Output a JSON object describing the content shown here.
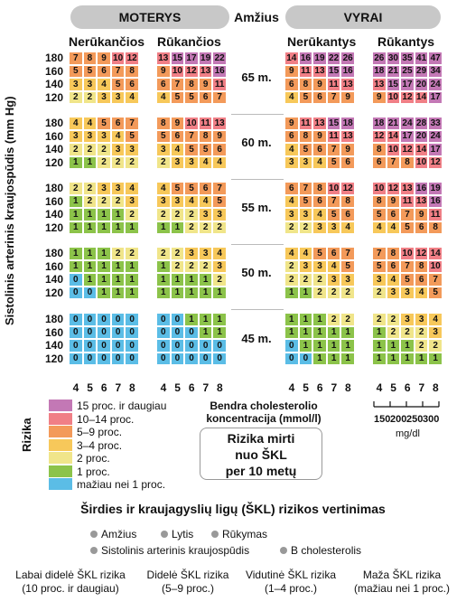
{
  "header": {
    "women": "MOTERYS",
    "age": "Amžius",
    "men": "VYRAI"
  },
  "subheaders": {
    "w_nonsmoke": "Nerūkančios",
    "w_smoke": "Rūkančios",
    "m_nonsmoke": "Nerūkantys",
    "m_smoke": "Rūkantys"
  },
  "y_axis_label": "Sistolinis arterinis kraujospūdis (mm Hg)",
  "colors": {
    "c1": "#5bbde6",
    "c2": "#8cc34a",
    "c3": "#f0e58a",
    "c4": "#f7c85a",
    "c5": "#f39a5a",
    "c6": "#f07f86",
    "c7": "#c378b5"
  },
  "chart_data": {
    "type": "heatmap",
    "title": "Širdies ir kraujagyslių ligų (ŠKL) rizikos vertinimas",
    "x_label": "Bendra cholesterolio koncentracija (mmol/l)",
    "x_ticks": [
      "4",
      "5",
      "6",
      "7",
      "8"
    ],
    "x_ticks_mgdl": [
      "150",
      "200",
      "250",
      "300"
    ],
    "x_unit_mgdl": "mg/dl",
    "y_label": "Sistolinis arterinis kraujospūdis (mm Hg)",
    "y_ticks": [
      "180",
      "160",
      "140",
      "120"
    ],
    "value_label": "Rizika mirti nuo ŠKL per 10 metų",
    "groups": [
      "MOTERYS Nerūkančios",
      "MOTERYS Rūkančios",
      "VYRAI Nerūkantys",
      "VYRAI Rūkantys"
    ],
    "age_bands": [
      {
        "age": "65 m.",
        "grids": [
          [
            [
              7,
              8,
              9,
              10,
              12
            ],
            [
              5,
              5,
              6,
              7,
              8
            ],
            [
              3,
              3,
              4,
              5,
              6
            ],
            [
              2,
              2,
              3,
              3,
              4
            ]
          ],
          [
            [
              13,
              15,
              17,
              19,
              22
            ],
            [
              9,
              10,
              12,
              13,
              16
            ],
            [
              6,
              7,
              8,
              9,
              11
            ],
            [
              4,
              5,
              5,
              6,
              7
            ]
          ],
          [
            [
              14,
              16,
              19,
              22,
              26
            ],
            [
              9,
              11,
              13,
              15,
              16
            ],
            [
              6,
              8,
              9,
              11,
              13
            ],
            [
              4,
              5,
              6,
              7,
              9
            ]
          ],
          [
            [
              26,
              30,
              35,
              41,
              47
            ],
            [
              18,
              21,
              25,
              29,
              34
            ],
            [
              13,
              15,
              17,
              20,
              24
            ],
            [
              9,
              10,
              12,
              14,
              17
            ]
          ]
        ]
      },
      {
        "age": "60 m.",
        "grids": [
          [
            [
              4,
              4,
              5,
              6,
              7
            ],
            [
              3,
              3,
              3,
              4,
              5
            ],
            [
              2,
              2,
              2,
              3,
              3
            ],
            [
              1,
              1,
              2,
              2,
              2
            ]
          ],
          [
            [
              8,
              9,
              10,
              11,
              13
            ],
            [
              5,
              6,
              7,
              8,
              9
            ],
            [
              3,
              4,
              5,
              5,
              6
            ],
            [
              2,
              3,
              3,
              4,
              4
            ]
          ],
          [
            [
              9,
              11,
              13,
              15,
              18
            ],
            [
              6,
              8,
              9,
              11,
              13
            ],
            [
              4,
              5,
              6,
              7,
              9
            ],
            [
              3,
              3,
              4,
              5,
              6
            ]
          ],
          [
            [
              18,
              21,
              24,
              28,
              33
            ],
            [
              12,
              14,
              17,
              20,
              24
            ],
            [
              8,
              10,
              12,
              14,
              17
            ],
            [
              6,
              7,
              8,
              10,
              12
            ]
          ]
        ]
      },
      {
        "age": "55 m.",
        "grids": [
          [
            [
              2,
              2,
              3,
              3,
              4
            ],
            [
              1,
              2,
              2,
              2,
              3
            ],
            [
              1,
              1,
              1,
              1,
              2
            ],
            [
              1,
              1,
              1,
              1,
              1
            ]
          ],
          [
            [
              4,
              5,
              5,
              6,
              7
            ],
            [
              3,
              3,
              4,
              4,
              5
            ],
            [
              2,
              2,
              2,
              3,
              3
            ],
            [
              1,
              1,
              2,
              2,
              2
            ]
          ],
          [
            [
              6,
              7,
              8,
              10,
              12
            ],
            [
              4,
              5,
              6,
              7,
              8
            ],
            [
              3,
              3,
              4,
              5,
              6
            ],
            [
              2,
              2,
              3,
              3,
              4
            ]
          ],
          [
            [
              10,
              12,
              13,
              16,
              19
            ],
            [
              8,
              9,
              11,
              13,
              16
            ],
            [
              5,
              6,
              7,
              9,
              11
            ],
            [
              4,
              4,
              5,
              6,
              8
            ]
          ]
        ]
      },
      {
        "age": "50 m.",
        "grids": [
          [
            [
              1,
              1,
              1,
              2,
              2
            ],
            [
              1,
              1,
              1,
              1,
              1
            ],
            [
              0,
              1,
              1,
              1,
              1
            ],
            [
              0,
              0,
              1,
              1,
              1
            ]
          ],
          [
            [
              2,
              2,
              3,
              3,
              4
            ],
            [
              1,
              2,
              2,
              2,
              3
            ],
            [
              1,
              1,
              1,
              1,
              2
            ],
            [
              1,
              1,
              1,
              1,
              1
            ]
          ],
          [
            [
              4,
              4,
              5,
              6,
              7
            ],
            [
              2,
              3,
              3,
              4,
              5
            ],
            [
              2,
              2,
              2,
              3,
              3
            ],
            [
              1,
              1,
              2,
              2,
              2
            ]
          ],
          [
            [
              7,
              8,
              10,
              12,
              14
            ],
            [
              5,
              6,
              7,
              8,
              10
            ],
            [
              3,
              4,
              5,
              6,
              7
            ],
            [
              2,
              3,
              3,
              4,
              5
            ]
          ]
        ]
      },
      {
        "age": "45 m.",
        "grids": [
          [
            [
              0,
              0,
              0,
              0,
              0
            ],
            [
              0,
              0,
              0,
              0,
              0
            ],
            [
              0,
              0,
              0,
              0,
              0
            ],
            [
              0,
              0,
              0,
              0,
              0
            ]
          ],
          [
            [
              0,
              0,
              1,
              1,
              1
            ],
            [
              0,
              0,
              0,
              1,
              1
            ],
            [
              0,
              0,
              0,
              0,
              0
            ],
            [
              0,
              0,
              0,
              0,
              0
            ]
          ],
          [
            [
              1,
              1,
              1,
              2,
              2
            ],
            [
              1,
              1,
              1,
              1,
              1
            ],
            [
              0,
              1,
              1,
              1,
              1
            ],
            [
              0,
              0,
              1,
              1,
              1
            ]
          ],
          [
            [
              2,
              2,
              3,
              3,
              4
            ],
            [
              1,
              2,
              2,
              2,
              3
            ],
            [
              1,
              1,
              1,
              2,
              2
            ],
            [
              1,
              1,
              1,
              1,
              1
            ]
          ]
        ]
      }
    ]
  },
  "legend": {
    "rizika_label": "Rizika",
    "items": [
      {
        "label": "15 proc. ir daugiau",
        "color": "#c378b5"
      },
      {
        "label": "10–14 proc.",
        "color": "#f07f86"
      },
      {
        "label": "5–9 proc.",
        "color": "#f39a5a"
      },
      {
        "label": "3–4 proc.",
        "color": "#f7c85a"
      },
      {
        "label": "2 proc.",
        "color": "#f0e58a"
      },
      {
        "label": "1 proc.",
        "color": "#8cc34a"
      },
      {
        "label": "mažiau nei 1 proc.",
        "color": "#5bbde6"
      }
    ]
  },
  "chol_label_line1": "Bendra cholesterolio",
  "chol_label_line2": "koncentracija (mmol/l)",
  "risk_box": {
    "line1": "Rizika mirti",
    "line2": "nuo ŠKL",
    "line3": "per 10 metų"
  },
  "factors": [
    "Amžius",
    "Lytis",
    "Rūkymas",
    "Sistolinis arterinis kraujospūdis",
    "B cholesterolis"
  ],
  "categories": [
    {
      "line1": "Labai didelė ŠKL rizika",
      "line2": "(10 proc. ir daugiau)"
    },
    {
      "line1": "Didelė ŠKL rizika",
      "line2": "(5–9 proc.)"
    },
    {
      "line1": "Vidutinė ŠKL rizika",
      "line2": "(1–4 proc.)"
    },
    {
      "line1": "Maža ŠKL rizika",
      "line2": "(mažiau nei 1 proc.)"
    }
  ]
}
